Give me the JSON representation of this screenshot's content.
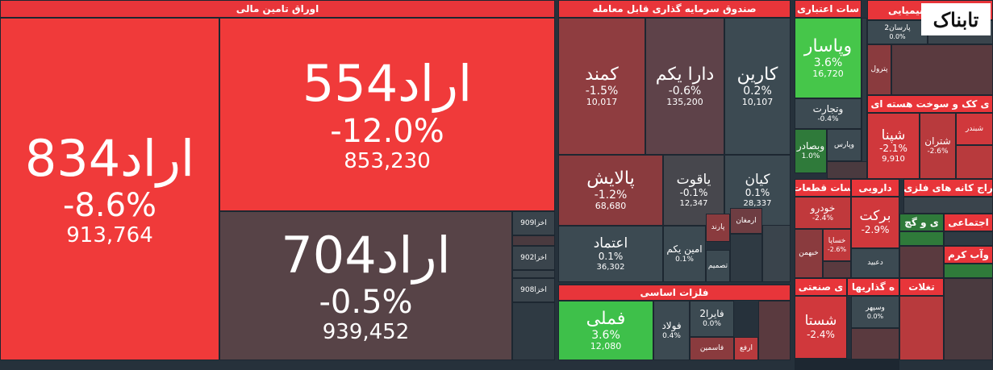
{
  "logo": "تابناک",
  "sections": [
    {
      "title": "اوراق تامین مالی",
      "tiles": [
        {
          "name": "اراد834",
          "change": "-8.6%",
          "volume": "913,764"
        },
        {
          "name": "اراد554",
          "change": "-12.0%",
          "volume": "853,230"
        },
        {
          "name": "اراد704",
          "change": "-0.5%",
          "volume": "939,452"
        },
        {
          "name": "اخزا909"
        },
        {
          "name": "اخزا902"
        },
        {
          "name": "اخزا908"
        }
      ]
    },
    {
      "title": "صندوق سرمایه گذاری قابل معامله",
      "tiles": [
        {
          "name": "کمند",
          "change": "-1.5%",
          "volume": "10,017"
        },
        {
          "name": "دارا یکم",
          "change": "-0.6%",
          "volume": "135,200"
        },
        {
          "name": "کارین",
          "change": "0.2%",
          "volume": "10,107"
        },
        {
          "name": "پالایش",
          "change": "-1.2%",
          "volume": "68,680"
        },
        {
          "name": "یاقوت",
          "change": "-0.1%",
          "volume": "12,347"
        },
        {
          "name": "کیان",
          "change": "0.1%",
          "volume": "28,337"
        },
        {
          "name": "اعتماد",
          "change": "0.1%",
          "volume": "36,302"
        },
        {
          "name": "امین یکم",
          "change": "0.1%"
        },
        {
          "name": "پارند"
        },
        {
          "name": "ارمغان"
        },
        {
          "name": "تصمیم"
        }
      ]
    },
    {
      "title": "فلزات اساسی",
      "tiles": [
        {
          "name": "فملی",
          "change": "3.6%",
          "volume": "12,080"
        },
        {
          "name": "فولاد",
          "change": "0.4%"
        },
        {
          "name": "فایرا2",
          "change": "0.0%"
        },
        {
          "name": "فاسمین"
        },
        {
          "name": "ارفع"
        }
      ]
    },
    {
      "title": "سات اعتباری",
      "tiles": [
        {
          "name": "وپاسار",
          "change": "3.6%",
          "volume": "16,720"
        },
        {
          "name": "وتجارت",
          "change": "-0.4%"
        },
        {
          "name": "وبصادر",
          "change": "1.0%"
        },
        {
          "name": "وپارس"
        }
      ]
    },
    {
      "title": "حصولات شیمیایی",
      "tiles": [
        {
          "name": "پارسان2",
          "change": "0.0%"
        },
        {
          "name": "پترول"
        }
      ]
    },
    {
      "title": "ی کک و سوخت هسته ای",
      "tiles": [
        {
          "name": "شپنا",
          "change": "-2.1%",
          "volume": "9,910"
        },
        {
          "name": "شتران",
          "change": "-2.6%"
        },
        {
          "name": "شبندر"
        }
      ]
    },
    {
      "title": "سات قطعات",
      "tiles": [
        {
          "name": "خودرو",
          "change": "-2.4%"
        },
        {
          "name": "خساپا",
          "change": "-2.6%"
        },
        {
          "name": "خبهمن"
        }
      ]
    },
    {
      "title": "دارویی",
      "tiles": [
        {
          "name": "برکت",
          "change": "-2.9%"
        },
        {
          "name": "دعبید"
        }
      ]
    },
    {
      "title": "ی صنعتی",
      "tiles": [
        {
          "name": "شستا",
          "change": "-2.4%"
        }
      ]
    },
    {
      "title": "ه گذاریها",
      "tiles": [
        {
          "name": "وسپهر",
          "change": "0.0%"
        }
      ]
    },
    {
      "title": "راج کانه های فلزی"
    },
    {
      "title": "ی و گچ"
    },
    {
      "title": "اجتماعی"
    },
    {
      "title": "وآب کرم"
    },
    {
      "title": "تغلات"
    }
  ]
}
